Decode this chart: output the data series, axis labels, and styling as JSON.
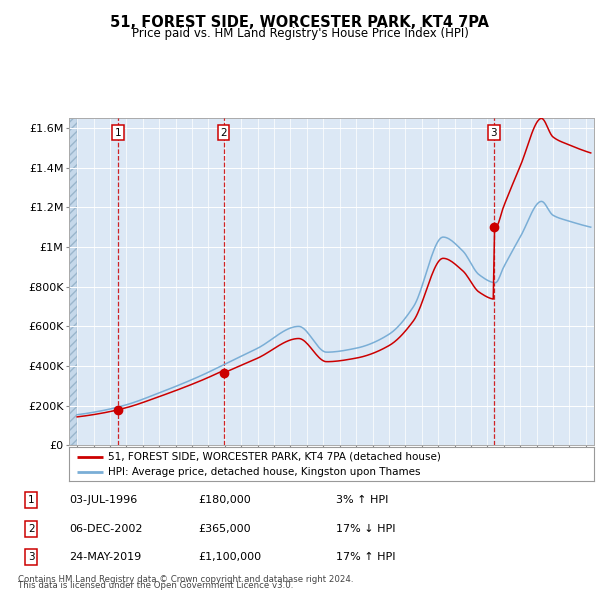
{
  "title": "51, FOREST SIDE, WORCESTER PARK, KT4 7PA",
  "subtitle": "Price paid vs. HM Land Registry's House Price Index (HPI)",
  "legend_line1": "51, FOREST SIDE, WORCESTER PARK, KT4 7PA (detached house)",
  "legend_line2": "HPI: Average price, detached house, Kingston upon Thames",
  "transactions": [
    {
      "label": "1",
      "date_str": "03-JUL-1996",
      "year": 1996.5,
      "price": 180000,
      "pct": "3%",
      "dir": "↑"
    },
    {
      "label": "2",
      "date_str": "06-DEC-2002",
      "year": 2002.92,
      "price": 365000,
      "pct": "17%",
      "dir": "↓"
    },
    {
      "label": "3",
      "date_str": "24-MAY-2019",
      "year": 2019.38,
      "price": 1100000,
      "pct": "17%",
      "dir": "↑"
    }
  ],
  "ylabel_ticks": [
    "£0",
    "£200K",
    "£400K",
    "£600K",
    "£800K",
    "£1M",
    "£1.2M",
    "£1.4M",
    "£1.6M"
  ],
  "ytick_vals": [
    0,
    200000,
    400000,
    600000,
    800000,
    1000000,
    1200000,
    1400000,
    1600000
  ],
  "ylim": [
    0,
    1650000
  ],
  "xlim_start": 1993.5,
  "xlim_end": 2025.5,
  "hpi_color": "#7aaed6",
  "property_color": "#cc0000",
  "bg_color": "#dce8f5",
  "grid_color": "#ffffff",
  "footnote1": "Contains HM Land Registry data © Crown copyright and database right 2024.",
  "footnote2": "This data is licensed under the Open Government Licence v3.0.",
  "transaction_box_color": "#cc0000"
}
